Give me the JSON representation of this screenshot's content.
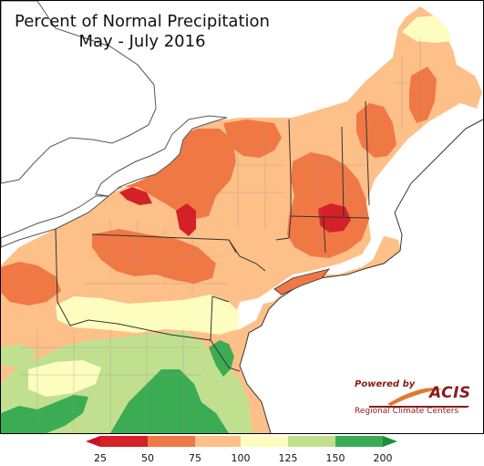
{
  "title": {
    "line1": "Percent of Normal Precipitation",
    "line2": "May - July 2016"
  },
  "logo": {
    "powered_by": "Powered by",
    "brand": "ACIS",
    "subtitle": "Regional Climate Centers"
  },
  "legend": {
    "ticks": [
      "25",
      "50",
      "75",
      "100",
      "125",
      "150",
      "200"
    ],
    "colors": {
      "below_25": "#c8102e",
      "25_50": "#d42028",
      "50_75": "#f07845",
      "75_100": "#fdc088",
      "100_125": "#fdfdc0",
      "125_150": "#c0e090",
      "150_200": "#3cac54",
      "above_200": "#1f8c3c"
    }
  },
  "colors": {
    "lake": "#ffffff",
    "border": "#555555",
    "county": "#9a8f7a"
  }
}
